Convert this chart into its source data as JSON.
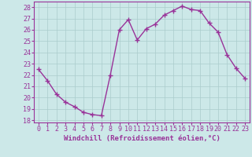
{
  "x": [
    0,
    1,
    2,
    3,
    4,
    5,
    6,
    7,
    8,
    9,
    10,
    11,
    12,
    13,
    14,
    15,
    16,
    17,
    18,
    19,
    20,
    21,
    22,
    23
  ],
  "y": [
    22.5,
    21.5,
    20.3,
    19.6,
    19.2,
    18.7,
    18.5,
    18.4,
    22.0,
    26.0,
    26.9,
    25.1,
    26.1,
    26.5,
    27.3,
    27.7,
    28.1,
    27.8,
    27.7,
    26.6,
    25.8,
    23.8,
    22.6,
    21.7
  ],
  "line_color": "#993399",
  "marker": "+",
  "marker_size": 4,
  "marker_lw": 1.0,
  "bg_color": "#cce8e8",
  "grid_color": "#aacccc",
  "xlabel": "Windchill (Refroidissement éolien,°C)",
  "xlim": [
    -0.5,
    23.5
  ],
  "ylim": [
    17.8,
    28.5
  ],
  "xticks": [
    0,
    1,
    2,
    3,
    4,
    5,
    6,
    7,
    8,
    9,
    10,
    11,
    12,
    13,
    14,
    15,
    16,
    17,
    18,
    19,
    20,
    21,
    22,
    23
  ],
  "yticks": [
    18,
    19,
    20,
    21,
    22,
    23,
    24,
    25,
    26,
    27,
    28
  ],
  "tick_color": "#993399",
  "label_color": "#993399",
  "axis_label_fontsize": 6.5,
  "tick_fontsize": 6.0,
  "line_width": 1.0
}
